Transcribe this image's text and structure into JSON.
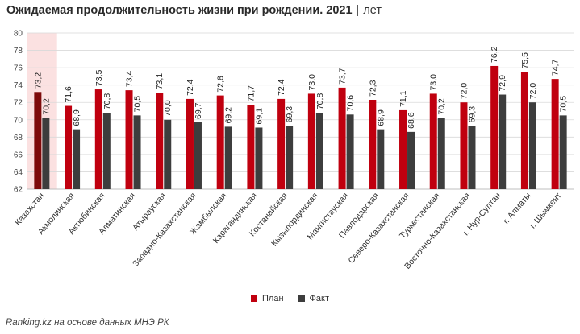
{
  "header": {
    "title": "Ожидаемая продолжительность жизни при рождении. 2021",
    "separator": "|",
    "unit": "лет"
  },
  "colors": {
    "plan": "#c0000f",
    "fact": "#3d3d3d",
    "highlight": "#fbe1e1",
    "highlight_plan": "#7d0a0a"
  },
  "legend": {
    "plan": "План",
    "fact": "Факт"
  },
  "footer": {
    "source": "Ranking.kz на основе данных МНЭ РК"
  },
  "chart_data": {
    "type": "bar",
    "ylim": [
      62,
      80
    ],
    "yticks": [
      62,
      64,
      66,
      68,
      70,
      72,
      74,
      76,
      78,
      80
    ],
    "grid": true,
    "legend_position": "bottom",
    "highlight_category": "Казахстан",
    "categories": [
      "Казахстан",
      "Акмолинская",
      "Актюбинская",
      "Алматинская",
      "Атырауская",
      "Западно-Казахстанская",
      "Жамбылская",
      "Карагандинская",
      "Костанайская",
      "Кызылординская",
      "Мангистауская",
      "Павлодарская",
      "Северо-Казахстанская",
      "Туркестанская",
      "Восточно-Казахстанская",
      "г. Нур-Султан",
      "г. Алматы",
      "г. Шымкент"
    ],
    "series": [
      {
        "name": "План",
        "values": [
          73.2,
          71.6,
          73.5,
          73.4,
          73.1,
          72.4,
          72.8,
          71.7,
          72.4,
          73.0,
          73.7,
          72.3,
          71.1,
          73.0,
          72.0,
          76.2,
          75.5,
          74.7
        ],
        "labels": [
          "73,2",
          "71,6",
          "73,5",
          "73,4",
          "73,1",
          "72,4",
          "72,8",
          "71,7",
          "72,4",
          "73,0",
          "73,7",
          "72,3",
          "71,1",
          "73,0",
          "72,0",
          "76,2",
          "75,5",
          "74,7"
        ]
      },
      {
        "name": "Факт",
        "values": [
          70.2,
          68.9,
          70.8,
          70.5,
          70.0,
          69.7,
          69.2,
          69.1,
          69.3,
          70.8,
          70.6,
          68.9,
          68.6,
          70.2,
          69.3,
          72.9,
          72.0,
          70.5
        ],
        "labels": [
          "70,2",
          "68,9",
          "70,8",
          "70,5",
          "70,0",
          "69,7",
          "69,2",
          "69,1",
          "69,3",
          "70,8",
          "70,6",
          "68,9",
          "68,6",
          "70,2",
          "69,3",
          "72,9",
          "72,0",
          "70,5"
        ]
      }
    ]
  }
}
